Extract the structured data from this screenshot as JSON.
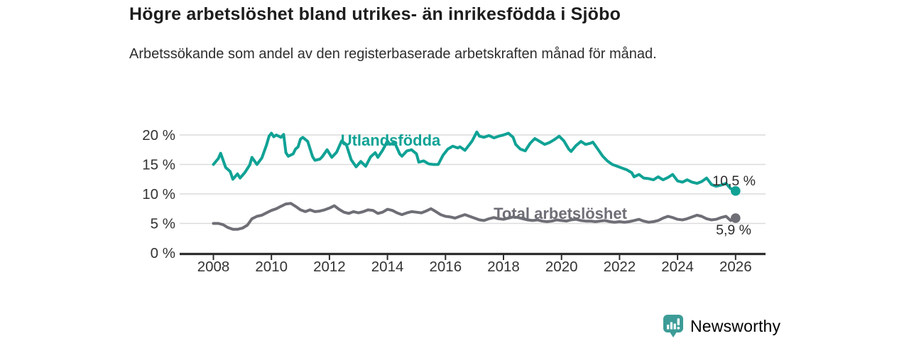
{
  "header": {
    "title": "Högre arbetslöshet bland utrikes- än inrikesfödda i Sjöbo",
    "subtitle": "Arbetssökande som andel av den registerbaserade arbetskraften månad för månad."
  },
  "chart_data": {
    "type": "line",
    "title": "Högre arbetslöshet bland utrikes- än inrikesfödda i Sjöbo",
    "xlabel": "",
    "ylabel": "",
    "x_unit": "year (monthly data)",
    "y_unit": "%",
    "xlim": [
      2007.85,
      2027.05
    ],
    "ylim": [
      0,
      21.5
    ],
    "grid": "horizontal",
    "legend_position": "inline-labels",
    "x_ticks": [
      {
        "value": 2008,
        "label": "2008"
      },
      {
        "value": 2010,
        "label": "2010"
      },
      {
        "value": 2012,
        "label": "2012"
      },
      {
        "value": 2014,
        "label": "2014"
      },
      {
        "value": 2016,
        "label": "2016"
      },
      {
        "value": 2018,
        "label": "2018"
      },
      {
        "value": 2020,
        "label": "2020"
      },
      {
        "value": 2022,
        "label": "2022"
      },
      {
        "value": 2024,
        "label": "2024"
      },
      {
        "value": 2026,
        "label": "2026"
      }
    ],
    "y_ticks": [
      {
        "value": 0,
        "label": "0 %"
      },
      {
        "value": 5,
        "label": "5 %"
      },
      {
        "value": 10,
        "label": "10 %"
      },
      {
        "value": 15,
        "label": "15 %"
      },
      {
        "value": 20,
        "label": "20 %"
      }
    ],
    "series": [
      {
        "name": "Utlandsfödda",
        "label": "Utlandsfödda",
        "color": "#10a295",
        "end_value": 10.5,
        "end_label": "10,5 %",
        "points": [
          [
            2008,
            15
          ],
          [
            2008.17,
            16
          ],
          [
            2008.25,
            16.9
          ],
          [
            2008.42,
            14.5
          ],
          [
            2008.58,
            13.8
          ],
          [
            2008.67,
            12.5
          ],
          [
            2008.83,
            13.4
          ],
          [
            2008.92,
            12.7
          ],
          [
            2009.08,
            13.6
          ],
          [
            2009.25,
            14.9
          ],
          [
            2009.33,
            16.2
          ],
          [
            2009.5,
            15
          ],
          [
            2009.67,
            16.1
          ],
          [
            2009.83,
            18.3
          ],
          [
            2009.92,
            19.8
          ],
          [
            2010,
            20.3
          ],
          [
            2010.08,
            19.7
          ],
          [
            2010.17,
            20
          ],
          [
            2010.33,
            19.6
          ],
          [
            2010.42,
            20.1
          ],
          [
            2010.5,
            17
          ],
          [
            2010.58,
            16.4
          ],
          [
            2010.75,
            16.8
          ],
          [
            2010.83,
            17.6
          ],
          [
            2010.92,
            18
          ],
          [
            2011,
            19.3
          ],
          [
            2011.08,
            19.6
          ],
          [
            2011.25,
            18.9
          ],
          [
            2011.42,
            16.3
          ],
          [
            2011.5,
            15.7
          ],
          [
            2011.67,
            15.9
          ],
          [
            2011.75,
            16.3
          ],
          [
            2011.92,
            17.5
          ],
          [
            2012.08,
            16.2
          ],
          [
            2012.25,
            17.1
          ],
          [
            2012.42,
            19
          ],
          [
            2012.58,
            18.4
          ],
          [
            2012.75,
            15.8
          ],
          [
            2012.92,
            14.6
          ],
          [
            2013.08,
            15.5
          ],
          [
            2013.25,
            14.7
          ],
          [
            2013.42,
            16.3
          ],
          [
            2013.58,
            17
          ],
          [
            2013.67,
            16.2
          ],
          [
            2013.83,
            17.4
          ],
          [
            2013.92,
            18.2
          ],
          [
            2014,
            19
          ],
          [
            2014.08,
            18.4
          ],
          [
            2014.25,
            18.7
          ],
          [
            2014.42,
            16.8
          ],
          [
            2014.5,
            16.4
          ],
          [
            2014.67,
            17.3
          ],
          [
            2014.83,
            17.5
          ],
          [
            2015,
            16.8
          ],
          [
            2015.08,
            15.4
          ],
          [
            2015.25,
            15.6
          ],
          [
            2015.42,
            15.1
          ],
          [
            2015.58,
            15
          ],
          [
            2015.75,
            15
          ],
          [
            2015.92,
            16.6
          ],
          [
            2016.08,
            17.6
          ],
          [
            2016.25,
            18.1
          ],
          [
            2016.42,
            17.8
          ],
          [
            2016.5,
            18
          ],
          [
            2016.67,
            17.4
          ],
          [
            2016.83,
            18.4
          ],
          [
            2016.92,
            19
          ],
          [
            2017.08,
            20.5
          ],
          [
            2017.17,
            19.8
          ],
          [
            2017.33,
            19.6
          ],
          [
            2017.5,
            19.9
          ],
          [
            2017.67,
            19.5
          ],
          [
            2017.83,
            19.8
          ],
          [
            2018,
            20
          ],
          [
            2018.17,
            20.3
          ],
          [
            2018.33,
            19.6
          ],
          [
            2018.42,
            18.4
          ],
          [
            2018.58,
            17.6
          ],
          [
            2018.75,
            17.3
          ],
          [
            2018.92,
            18.6
          ],
          [
            2019.08,
            19.4
          ],
          [
            2019.25,
            18.9
          ],
          [
            2019.42,
            18.4
          ],
          [
            2019.58,
            18.7
          ],
          [
            2019.75,
            19.2
          ],
          [
            2019.92,
            19.8
          ],
          [
            2020.08,
            19
          ],
          [
            2020.25,
            17.6
          ],
          [
            2020.33,
            17.2
          ],
          [
            2020.5,
            18.2
          ],
          [
            2020.67,
            18.9
          ],
          [
            2020.83,
            18.4
          ],
          [
            2021,
            18.6
          ],
          [
            2021.08,
            18.8
          ],
          [
            2021.25,
            17.6
          ],
          [
            2021.42,
            16.4
          ],
          [
            2021.58,
            15.6
          ],
          [
            2021.75,
            15
          ],
          [
            2021.92,
            14.7
          ],
          [
            2022.08,
            14.4
          ],
          [
            2022.25,
            14.1
          ],
          [
            2022.42,
            13.6
          ],
          [
            2022.5,
            12.9
          ],
          [
            2022.67,
            13.3
          ],
          [
            2022.83,
            12.7
          ],
          [
            2023,
            12.6
          ],
          [
            2023.17,
            12.4
          ],
          [
            2023.33,
            12.9
          ],
          [
            2023.5,
            12.4
          ],
          [
            2023.67,
            12.8
          ],
          [
            2023.83,
            13.3
          ],
          [
            2024,
            12.2
          ],
          [
            2024.17,
            12
          ],
          [
            2024.33,
            12.4
          ],
          [
            2024.5,
            12
          ],
          [
            2024.67,
            11.8
          ],
          [
            2024.83,
            12.1
          ],
          [
            2025,
            12.7
          ],
          [
            2025.17,
            11.6
          ],
          [
            2025.33,
            11.3
          ],
          [
            2025.5,
            11.5
          ],
          [
            2025.67,
            11.8
          ],
          [
            2025.83,
            10.9
          ],
          [
            2025.92,
            10.7
          ],
          [
            2026,
            10.5
          ]
        ]
      },
      {
        "name": "Total arbetslöshet",
        "label": "Total arbetslöshet",
        "color": "#6e6e76",
        "end_value": 5.9,
        "end_label": "5,9 %",
        "points": [
          [
            2008,
            5
          ],
          [
            2008.17,
            5
          ],
          [
            2008.33,
            4.8
          ],
          [
            2008.5,
            4.3
          ],
          [
            2008.67,
            4
          ],
          [
            2008.83,
            4
          ],
          [
            2009,
            4.2
          ],
          [
            2009.17,
            4.7
          ],
          [
            2009.33,
            5.8
          ],
          [
            2009.5,
            6.2
          ],
          [
            2009.67,
            6.4
          ],
          [
            2009.83,
            6.8
          ],
          [
            2010,
            7.2
          ],
          [
            2010.17,
            7.5
          ],
          [
            2010.33,
            7.9
          ],
          [
            2010.5,
            8.3
          ],
          [
            2010.67,
            8.4
          ],
          [
            2010.83,
            7.9
          ],
          [
            2011,
            7.3
          ],
          [
            2011.17,
            7
          ],
          [
            2011.33,
            7.3
          ],
          [
            2011.5,
            7
          ],
          [
            2011.67,
            7.1
          ],
          [
            2011.83,
            7.3
          ],
          [
            2012,
            7.6
          ],
          [
            2012.17,
            8
          ],
          [
            2012.33,
            7.4
          ],
          [
            2012.5,
            6.9
          ],
          [
            2012.67,
            6.7
          ],
          [
            2012.83,
            7
          ],
          [
            2013,
            6.8
          ],
          [
            2013.17,
            7
          ],
          [
            2013.33,
            7.3
          ],
          [
            2013.5,
            7.2
          ],
          [
            2013.67,
            6.7
          ],
          [
            2013.83,
            6.9
          ],
          [
            2014,
            7.4
          ],
          [
            2014.17,
            7.2
          ],
          [
            2014.33,
            6.8
          ],
          [
            2014.5,
            6.5
          ],
          [
            2014.67,
            6.8
          ],
          [
            2014.83,
            7
          ],
          [
            2015,
            6.9
          ],
          [
            2015.17,
            6.8
          ],
          [
            2015.33,
            7.1
          ],
          [
            2015.5,
            7.5
          ],
          [
            2015.67,
            7
          ],
          [
            2015.83,
            6.5
          ],
          [
            2016,
            6.2
          ],
          [
            2016.17,
            6.1
          ],
          [
            2016.33,
            5.9
          ],
          [
            2016.5,
            6.2
          ],
          [
            2016.67,
            6.5
          ],
          [
            2016.83,
            6.2
          ],
          [
            2017,
            5.9
          ],
          [
            2017.17,
            5.6
          ],
          [
            2017.33,
            5.5
          ],
          [
            2017.5,
            5.8
          ],
          [
            2017.67,
            6
          ],
          [
            2017.83,
            5.8
          ],
          [
            2018,
            5.7
          ],
          [
            2018.17,
            5.9
          ],
          [
            2018.33,
            6.1
          ],
          [
            2018.5,
            6
          ],
          [
            2018.67,
            5.8
          ],
          [
            2018.83,
            5.6
          ],
          [
            2019,
            5.5
          ],
          [
            2019.17,
            5.6
          ],
          [
            2019.33,
            5.4
          ],
          [
            2019.5,
            5.3
          ],
          [
            2019.67,
            5.4
          ],
          [
            2019.83,
            5.6
          ],
          [
            2020,
            5.5
          ],
          [
            2020.17,
            5.4
          ],
          [
            2020.33,
            5.6
          ],
          [
            2020.5,
            5.7
          ],
          [
            2020.67,
            5.5
          ],
          [
            2020.83,
            5.4
          ],
          [
            2021,
            5.4
          ],
          [
            2021.17,
            5.3
          ],
          [
            2021.33,
            5.4
          ],
          [
            2021.5,
            5.5
          ],
          [
            2021.67,
            5.3
          ],
          [
            2021.83,
            5.2
          ],
          [
            2022,
            5.3
          ],
          [
            2022.17,
            5.2
          ],
          [
            2022.33,
            5.3
          ],
          [
            2022.5,
            5.5
          ],
          [
            2022.67,
            5.7
          ],
          [
            2022.83,
            5.4
          ],
          [
            2023,
            5.2
          ],
          [
            2023.17,
            5.3
          ],
          [
            2023.33,
            5.5
          ],
          [
            2023.5,
            5.9
          ],
          [
            2023.67,
            6.2
          ],
          [
            2023.83,
            6
          ],
          [
            2024,
            5.7
          ],
          [
            2024.17,
            5.6
          ],
          [
            2024.33,
            5.8
          ],
          [
            2024.5,
            6.1
          ],
          [
            2024.67,
            6.4
          ],
          [
            2024.83,
            6.2
          ],
          [
            2025,
            5.8
          ],
          [
            2025.17,
            5.6
          ],
          [
            2025.33,
            5.7
          ],
          [
            2025.5,
            6
          ],
          [
            2025.67,
            6.2
          ],
          [
            2025.83,
            5.5
          ],
          [
            2026,
            5.9
          ]
        ]
      }
    ]
  },
  "footer": {
    "brand": "Newsworthy"
  },
  "colors": {
    "accent_teal": "#10a295",
    "line_gray": "#6e6e76",
    "axis": "#2e2e2e",
    "grid": "#dcdcdc",
    "tick_text": "#333333",
    "annotation_text": "#2b2b2b",
    "brand_teal": "#3d9c97",
    "title_text": "#1d1d1d"
  }
}
